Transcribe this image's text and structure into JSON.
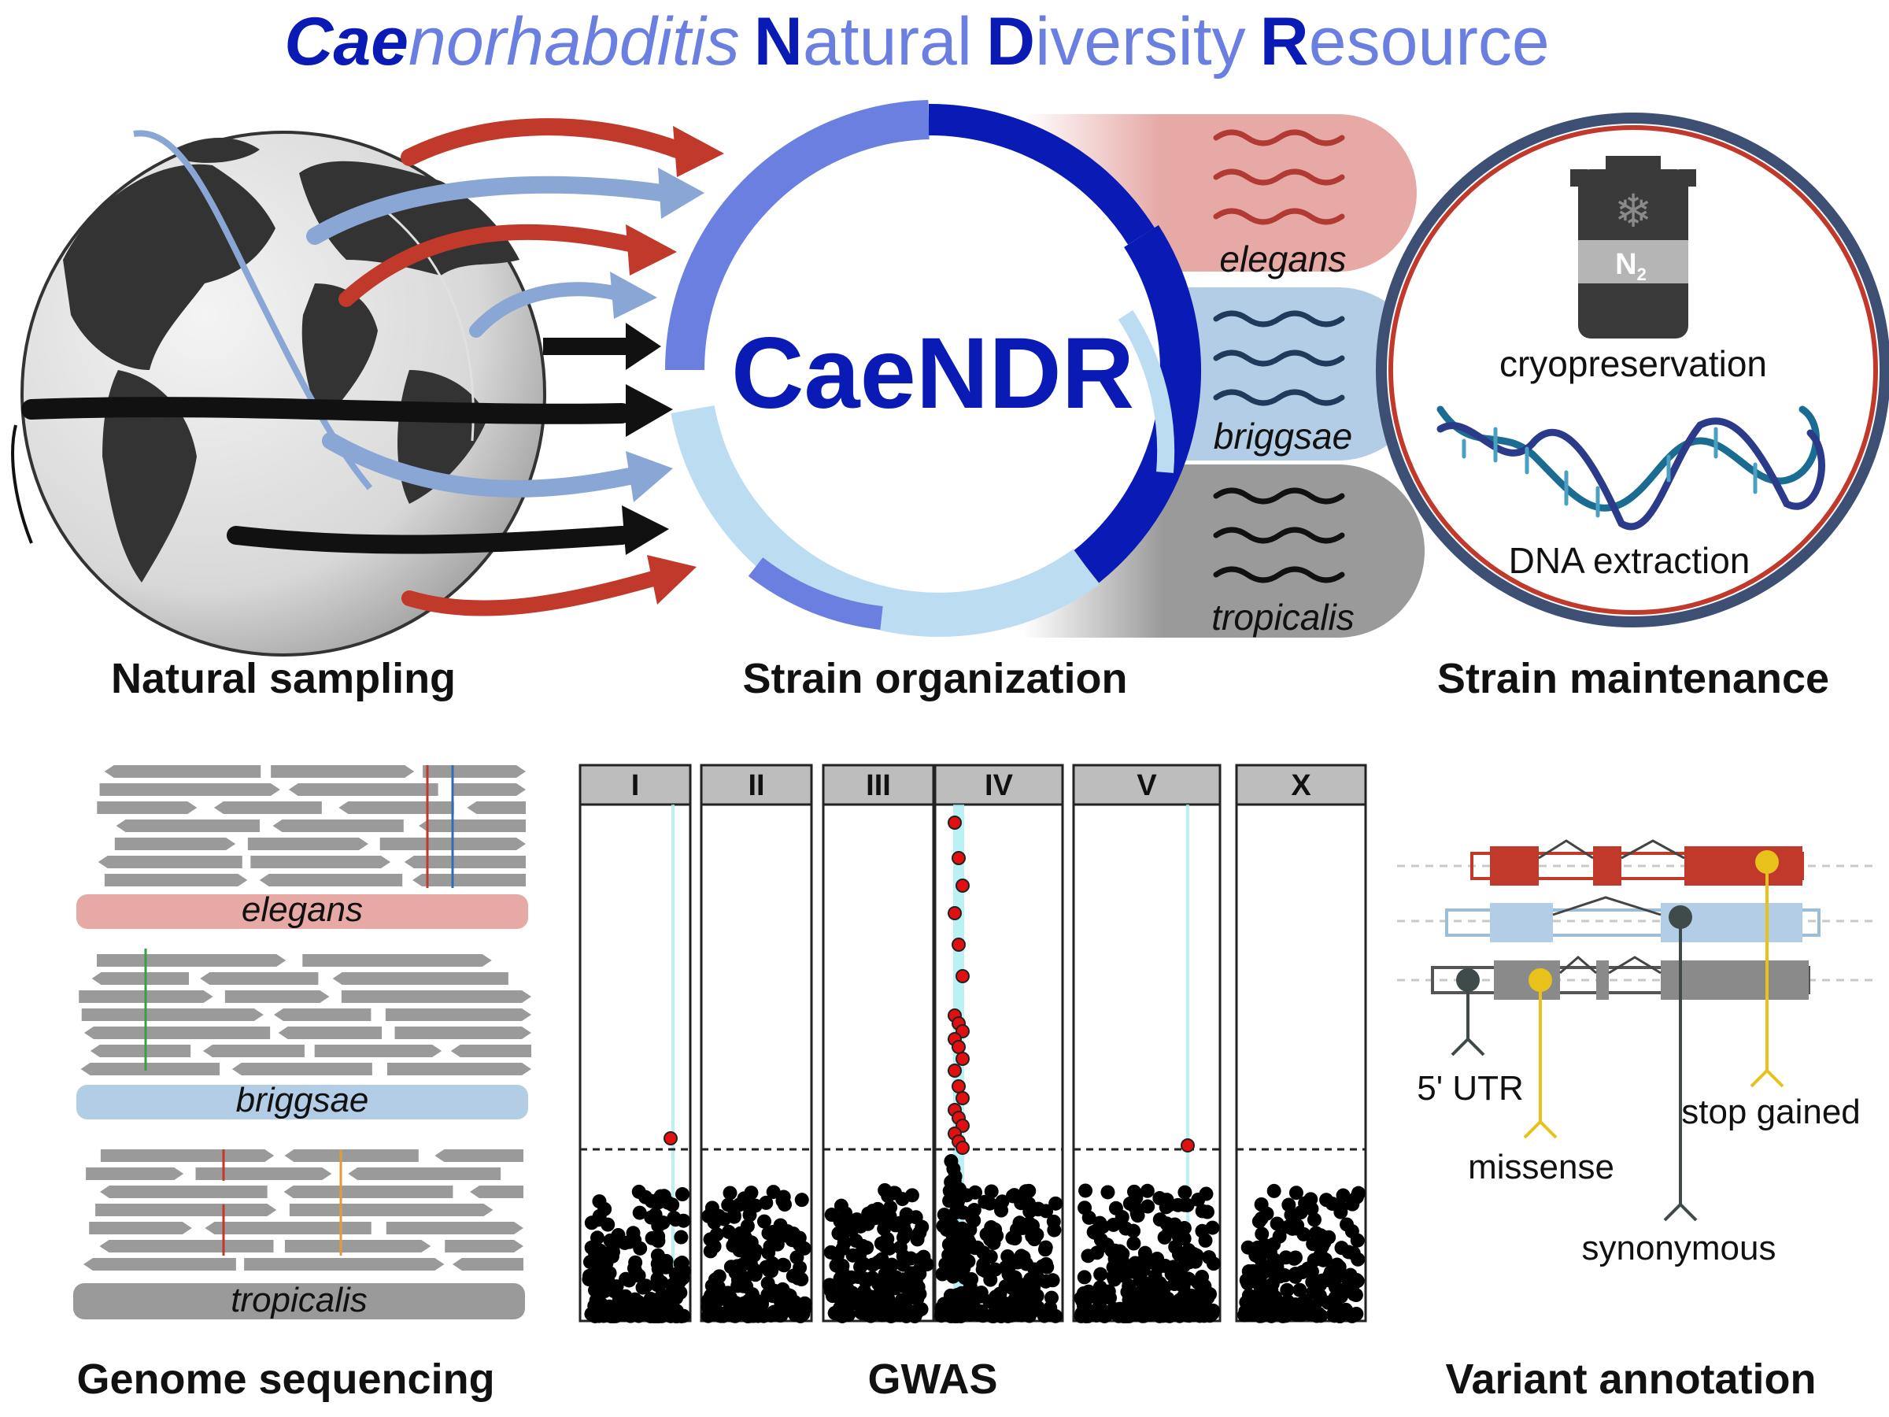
{
  "title": {
    "part1_bold": "Cae",
    "part1_rest": "norhabditis",
    "part2_bold": "N",
    "part2_rest": "atural",
    "part3_bold": "D",
    "part3_rest": "iversity",
    "part4_bold": "R",
    "part4_rest": "esource"
  },
  "center_label": "CaeNDR",
  "species": [
    "elegans",
    "briggsae",
    "tropicalis"
  ],
  "maintenance": {
    "tank_label": "N",
    "tank_subscript": "2",
    "cryo_label": "cryopreservation",
    "dna_label": "DNA extraction"
  },
  "section_labels": {
    "natural_sampling": "Natural sampling",
    "strain_organization": "Strain organization",
    "strain_maintenance": "Strain maintenance",
    "genome_sequencing": "Genome sequencing",
    "gwas": "GWAS",
    "variant_annotation": "Variant annotation"
  },
  "gwas": {
    "chromosomes": [
      "I",
      "II",
      "III",
      "IV",
      "V",
      "X"
    ]
  },
  "variants": {
    "utr": "5' UTR",
    "missense": "missense",
    "stop_gained": "stop gained",
    "synonymous": "synonymous"
  },
  "colors": {
    "title_dark": "#0a1ab4",
    "title_light": "#6b7fe0",
    "elegans": "#c0392b",
    "briggsae": "#8aa6d4",
    "tropicalis": "#222222",
    "significant": "#e11010",
    "yellow": "#e8c21a"
  }
}
